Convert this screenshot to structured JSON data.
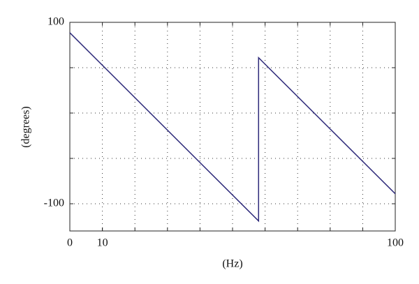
{
  "chart_data": {
    "type": "line",
    "x_label": "(Hz)",
    "y_label": "(degrees)",
    "x": [
      0,
      58,
      58,
      100
    ],
    "series": [
      {
        "color": "#2e2a7a",
        "values": [
          88.5,
          -119,
          61,
          -89
        ]
      }
    ],
    "xlim": [
      0,
      100
    ],
    "xticks": [
      0,
      10,
      100
    ],
    "ylim": [
      -130,
      100
    ],
    "yticks": [
      -100,
      100
    ],
    "xgrid": [
      10,
      20,
      30,
      40,
      50,
      60,
      70,
      80,
      90
    ],
    "ygrid": [
      -100,
      -50,
      0,
      50
    ],
    "grid": true
  }
}
